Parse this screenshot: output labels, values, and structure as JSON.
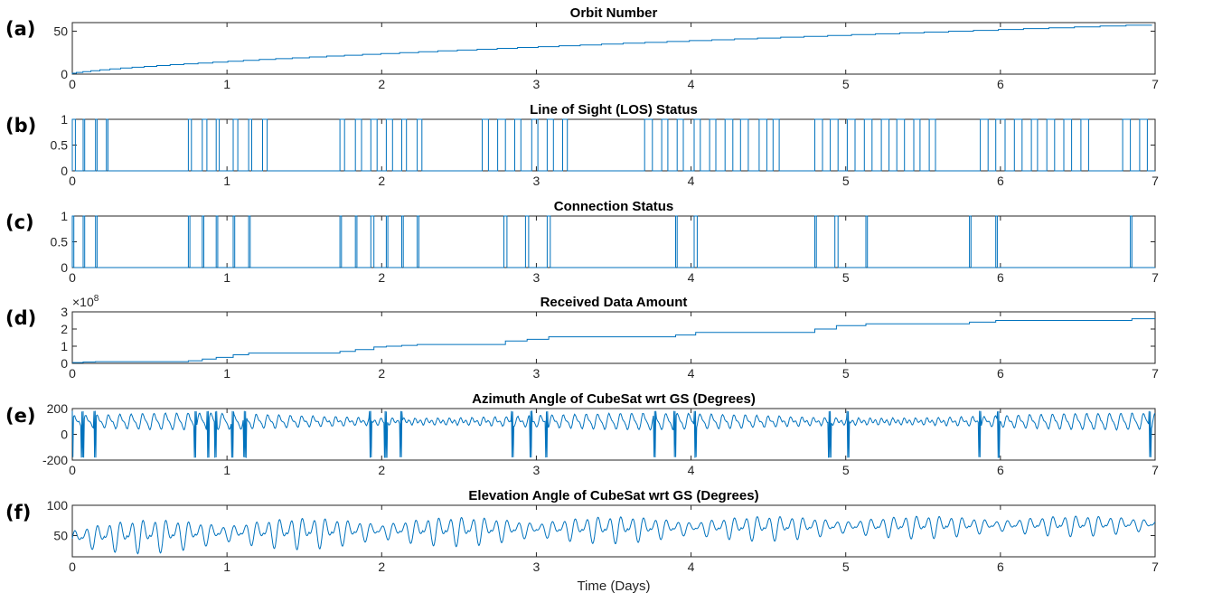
{
  "figure": {
    "xlabel": "Time (Days)",
    "line_color": "#0072BD",
    "axis_color": "#262626"
  },
  "chart_data": [
    {
      "type": "line",
      "panel_label": "(a)",
      "title": "Orbit Number",
      "xlim": [
        0,
        7
      ],
      "ylim": [
        0,
        60
      ],
      "xticks": [
        0,
        1,
        2,
        3,
        4,
        5,
        6,
        7
      ],
      "yticks": [
        0,
        50
      ],
      "ytick_labels": [
        "0",
        "50"
      ],
      "signal": {
        "kind": "staircase",
        "x_end": 6.98,
        "y_end": 57,
        "steps": 57
      },
      "series": [
        {
          "values_note": "",
          "x": [
            0,
            1,
            2,
            3,
            4,
            5,
            6,
            7
          ],
          "y": [
            0,
            13,
            22,
            31,
            39,
            45,
            50,
            56
          ]
        }
      ]
    },
    {
      "type": "line",
      "panel_label": "(b)",
      "title": "Line of Sight (LOS) Status",
      "xlim": [
        0,
        7
      ],
      "ylim": [
        0,
        1
      ],
      "xticks": [
        0,
        1,
        2,
        3,
        4,
        5,
        6,
        7
      ],
      "yticks": [
        0,
        0.5,
        1
      ],
      "ytick_labels": [
        "0",
        "0.5",
        "1"
      ],
      "signal": {
        "kind": "pulses",
        "intervals": [
          [
            0.0,
            0.02
          ],
          [
            0.07,
            0.08
          ],
          [
            0.15,
            0.16
          ],
          [
            0.22,
            0.23
          ],
          [
            0.75,
            0.77
          ],
          [
            0.84,
            0.87
          ],
          [
            0.93,
            0.95
          ],
          [
            1.04,
            1.07
          ],
          [
            1.14,
            1.16
          ],
          [
            1.23,
            1.26
          ],
          [
            1.73,
            1.76
          ],
          [
            1.83,
            1.87
          ],
          [
            1.93,
            1.97
          ],
          [
            2.03,
            2.07
          ],
          [
            2.13,
            2.16
          ],
          [
            2.23,
            2.26
          ],
          [
            2.65,
            2.69
          ],
          [
            2.75,
            2.8
          ],
          [
            2.86,
            2.9
          ],
          [
            2.97,
            3.01
          ],
          [
            3.07,
            3.11
          ],
          [
            3.17,
            3.2
          ],
          [
            3.7,
            3.75
          ],
          [
            3.81,
            3.85
          ],
          [
            3.91,
            3.95
          ],
          [
            4.02,
            4.06
          ],
          [
            4.12,
            4.16
          ],
          [
            4.22,
            4.27
          ],
          [
            4.32,
            4.37
          ],
          [
            4.44,
            4.49
          ],
          [
            4.53,
            4.57
          ],
          [
            4.8,
            4.85
          ],
          [
            4.9,
            4.95
          ],
          [
            5.01,
            5.06
          ],
          [
            5.12,
            5.17
          ],
          [
            5.23,
            5.28
          ],
          [
            5.33,
            5.38
          ],
          [
            5.44,
            5.48
          ],
          [
            5.54,
            5.58
          ],
          [
            5.87,
            5.92
          ],
          [
            5.97,
            6.03
          ],
          [
            6.09,
            6.14
          ],
          [
            6.2,
            6.24
          ],
          [
            6.3,
            6.35
          ],
          [
            6.41,
            6.46
          ],
          [
            6.52,
            6.57
          ],
          [
            6.79,
            6.84
          ],
          [
            6.9,
            6.95
          ]
        ]
      }
    },
    {
      "type": "line",
      "panel_label": "(c)",
      "title": "Connection Status",
      "xlim": [
        0,
        7
      ],
      "ylim": [
        0,
        1
      ],
      "xticks": [
        0,
        1,
        2,
        3,
        4,
        5,
        6,
        7
      ],
      "yticks": [
        0,
        0.5,
        1
      ],
      "ytick_labels": [
        "0",
        "0.5",
        "1"
      ],
      "signal": {
        "kind": "pulses",
        "intervals": [
          [
            0.0,
            0.01
          ],
          [
            0.07,
            0.08
          ],
          [
            0.15,
            0.16
          ],
          [
            0.75,
            0.76
          ],
          [
            0.84,
            0.85
          ],
          [
            0.93,
            0.94
          ],
          [
            1.04,
            1.05
          ],
          [
            1.14,
            1.15
          ],
          [
            1.73,
            1.74
          ],
          [
            1.83,
            1.84
          ],
          [
            1.93,
            1.95
          ],
          [
            2.03,
            2.04
          ],
          [
            2.13,
            2.14
          ],
          [
            2.23,
            2.24
          ],
          [
            2.79,
            2.81
          ],
          [
            2.93,
            2.95
          ],
          [
            3.07,
            3.09
          ],
          [
            3.9,
            3.91
          ],
          [
            4.02,
            4.04
          ],
          [
            4.8,
            4.81
          ],
          [
            4.93,
            4.95
          ],
          [
            5.13,
            5.14
          ],
          [
            5.8,
            5.81
          ],
          [
            5.97,
            5.98
          ],
          [
            6.84,
            6.85
          ]
        ]
      }
    },
    {
      "type": "line",
      "panel_label": "(d)",
      "title": "Received Data Amount",
      "exponent_base": "×10",
      "exponent_power": "8",
      "xlim": [
        0,
        7
      ],
      "ylim": [
        0,
        3
      ],
      "xticks": [
        0,
        1,
        2,
        3,
        4,
        5,
        6,
        7
      ],
      "yticks": [
        0,
        1,
        2,
        3
      ],
      "ytick_labels": [
        "0",
        "1",
        "2",
        "3"
      ],
      "signal": {
        "kind": "steps",
        "points": [
          [
            0,
            0.05
          ],
          [
            0.07,
            0.08
          ],
          [
            0.15,
            0.1
          ],
          [
            0.75,
            0.15
          ],
          [
            0.84,
            0.25
          ],
          [
            0.93,
            0.35
          ],
          [
            1.04,
            0.5
          ],
          [
            1.14,
            0.6
          ],
          [
            1.73,
            0.7
          ],
          [
            1.83,
            0.8
          ],
          [
            1.95,
            0.95
          ],
          [
            2.03,
            1.0
          ],
          [
            2.13,
            1.05
          ],
          [
            2.23,
            1.1
          ],
          [
            2.8,
            1.3
          ],
          [
            2.94,
            1.4
          ],
          [
            3.08,
            1.55
          ],
          [
            3.9,
            1.65
          ],
          [
            4.03,
            1.8
          ],
          [
            4.8,
            2.0
          ],
          [
            4.94,
            2.2
          ],
          [
            5.13,
            2.3
          ],
          [
            5.8,
            2.4
          ],
          [
            5.97,
            2.5
          ],
          [
            6.85,
            2.6
          ],
          [
            7,
            2.6
          ]
        ]
      }
    },
    {
      "type": "line",
      "panel_label": "(e)",
      "title": "Azimuth Angle of CubeSat wrt GS (Degrees)",
      "xlim": [
        0,
        7
      ],
      "ylim": [
        -200,
        200
      ],
      "xticks": [
        0,
        1,
        2,
        3,
        4,
        5,
        6,
        7
      ],
      "yticks": [
        -200,
        0,
        200
      ],
      "ytick_labels": [
        "-200",
        "0",
        "200"
      ],
      "signal": {
        "kind": "azimuth",
        "base": 100,
        "amplitude": 55,
        "wraps": [
          0.0,
          0.07,
          0.15,
          0.8,
          0.88,
          0.93,
          1.04,
          1.12,
          1.93,
          2.03,
          2.13,
          2.85,
          2.97,
          3.07,
          3.77,
          3.9,
          4.03,
          4.9,
          5.02,
          5.87,
          5.99,
          6.97
        ]
      }
    },
    {
      "type": "line",
      "panel_label": "(f)",
      "title": "Elevation Angle of CubeSat wrt GS (Degrees)",
      "xlim": [
        0,
        7
      ],
      "ylim": [
        15,
        100
      ],
      "xticks": [
        0,
        1,
        2,
        3,
        4,
        5,
        6,
        7
      ],
      "yticks": [
        50,
        100
      ],
      "ytick_labels": [
        "50",
        "100"
      ],
      "signal": {
        "kind": "elevation",
        "base_start": 45,
        "base_end": 68,
        "amp_start": 32,
        "amp_end": 18
      }
    }
  ]
}
